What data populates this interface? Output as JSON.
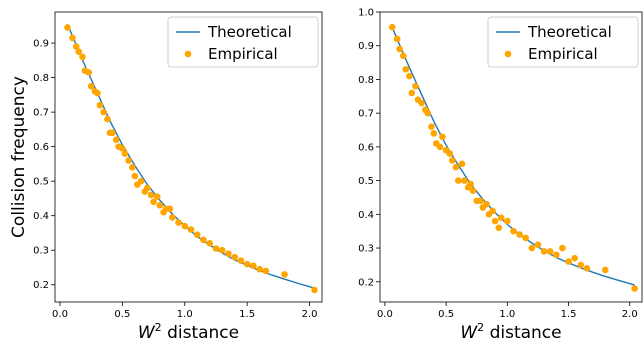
{
  "chart_data": [
    {
      "type": "scatter",
      "xlabel_base": "W",
      "xlabel_sup": "2",
      "xlabel_rest": " distance",
      "ylabel": "Collision frequency",
      "xlim": [
        -0.04,
        2.1
      ],
      "ylim": [
        0.15,
        0.99
      ],
      "xticks": [
        "0.0",
        "0.5",
        "1.0",
        "1.5",
        "2.0"
      ],
      "yticks": [
        "0.2",
        "0.3",
        "0.4",
        "0.5",
        "0.6",
        "0.7",
        "0.8",
        "0.9"
      ],
      "legend": {
        "position": "top-right",
        "entries": [
          "Theoretical",
          "Empirical"
        ]
      },
      "colors": {
        "theoretical": "#1f77b4",
        "empirical": "#ffa500"
      },
      "series": [
        {
          "name": "Theoretical",
          "kind": "line",
          "x": [
            0.06,
            0.1,
            0.2,
            0.3,
            0.4,
            0.5,
            0.6,
            0.7,
            0.8,
            0.9,
            1.0,
            1.1,
            1.2,
            1.3,
            1.4,
            1.5,
            1.6,
            1.7,
            1.8,
            1.9,
            2.04
          ],
          "y": [
            0.955,
            0.92,
            0.835,
            0.755,
            0.675,
            0.605,
            0.545,
            0.49,
            0.445,
            0.405,
            0.37,
            0.34,
            0.315,
            0.292,
            0.272,
            0.256,
            0.241,
            0.228,
            0.216,
            0.205,
            0.19
          ]
        },
        {
          "name": "Empirical",
          "kind": "scatter",
          "x": [
            0.06,
            0.1,
            0.13,
            0.15,
            0.18,
            0.2,
            0.23,
            0.25,
            0.28,
            0.3,
            0.32,
            0.35,
            0.38,
            0.4,
            0.42,
            0.45,
            0.47,
            0.5,
            0.52,
            0.55,
            0.58,
            0.6,
            0.62,
            0.65,
            0.68,
            0.7,
            0.73,
            0.75,
            0.78,
            0.8,
            0.83,
            0.85,
            0.88,
            0.9,
            0.95,
            1.0,
            1.05,
            1.1,
            1.15,
            1.2,
            1.25,
            1.3,
            1.35,
            1.4,
            1.45,
            1.5,
            1.55,
            1.6,
            1.65,
            1.8,
            2.04
          ],
          "y": [
            0.945,
            0.915,
            0.89,
            0.875,
            0.86,
            0.82,
            0.815,
            0.775,
            0.76,
            0.755,
            0.72,
            0.7,
            0.68,
            0.64,
            0.64,
            0.62,
            0.6,
            0.595,
            0.58,
            0.56,
            0.54,
            0.515,
            0.49,
            0.5,
            0.47,
            0.48,
            0.46,
            0.44,
            0.455,
            0.43,
            0.41,
            0.42,
            0.42,
            0.395,
            0.38,
            0.37,
            0.36,
            0.345,
            0.33,
            0.32,
            0.305,
            0.3,
            0.29,
            0.28,
            0.27,
            0.26,
            0.255,
            0.245,
            0.24,
            0.23,
            0.185
          ]
        }
      ]
    },
    {
      "type": "scatter",
      "xlabel_base": "W",
      "xlabel_sup": "2",
      "xlabel_rest": " distance",
      "ylabel": "",
      "xlim": [
        -0.04,
        2.1
      ],
      "ylim": [
        0.14,
        1.0
      ],
      "xticks": [
        "0.0",
        "0.5",
        "1.0",
        "1.5",
        "2.0"
      ],
      "yticks": [
        "0.2",
        "0.3",
        "0.4",
        "0.5",
        "0.6",
        "0.7",
        "0.8",
        "0.9",
        "1.0"
      ],
      "legend": {
        "position": "top-right",
        "entries": [
          "Theoretical",
          "Empirical"
        ]
      },
      "colors": {
        "theoretical": "#1f77b4",
        "empirical": "#ffa500"
      },
      "series": [
        {
          "name": "Theoretical",
          "kind": "line",
          "x": [
            0.06,
            0.1,
            0.2,
            0.3,
            0.4,
            0.5,
            0.6,
            0.7,
            0.8,
            0.9,
            1.0,
            1.1,
            1.2,
            1.3,
            1.4,
            1.5,
            1.6,
            1.7,
            1.8,
            1.9,
            2.04
          ],
          "y": [
            0.955,
            0.92,
            0.835,
            0.755,
            0.675,
            0.605,
            0.545,
            0.49,
            0.445,
            0.405,
            0.37,
            0.34,
            0.315,
            0.292,
            0.272,
            0.256,
            0.241,
            0.228,
            0.216,
            0.205,
            0.19
          ]
        },
        {
          "name": "Empirical",
          "kind": "scatter",
          "x": [
            0.06,
            0.1,
            0.12,
            0.15,
            0.17,
            0.2,
            0.22,
            0.25,
            0.27,
            0.3,
            0.33,
            0.35,
            0.38,
            0.4,
            0.42,
            0.45,
            0.47,
            0.5,
            0.53,
            0.55,
            0.58,
            0.6,
            0.63,
            0.65,
            0.68,
            0.7,
            0.72,
            0.75,
            0.78,
            0.8,
            0.83,
            0.85,
            0.88,
            0.9,
            0.93,
            0.95,
            1.0,
            1.05,
            1.1,
            1.15,
            1.2,
            1.25,
            1.3,
            1.35,
            1.4,
            1.45,
            1.5,
            1.55,
            1.6,
            1.65,
            1.8,
            2.04
          ],
          "y": [
            0.955,
            0.92,
            0.89,
            0.87,
            0.83,
            0.81,
            0.76,
            0.78,
            0.74,
            0.73,
            0.71,
            0.7,
            0.66,
            0.64,
            0.61,
            0.6,
            0.63,
            0.59,
            0.58,
            0.56,
            0.54,
            0.5,
            0.55,
            0.5,
            0.48,
            0.49,
            0.47,
            0.44,
            0.44,
            0.42,
            0.43,
            0.4,
            0.41,
            0.38,
            0.36,
            0.39,
            0.38,
            0.35,
            0.34,
            0.33,
            0.3,
            0.31,
            0.29,
            0.29,
            0.28,
            0.3,
            0.26,
            0.27,
            0.25,
            0.24,
            0.235,
            0.18
          ]
        }
      ]
    }
  ]
}
